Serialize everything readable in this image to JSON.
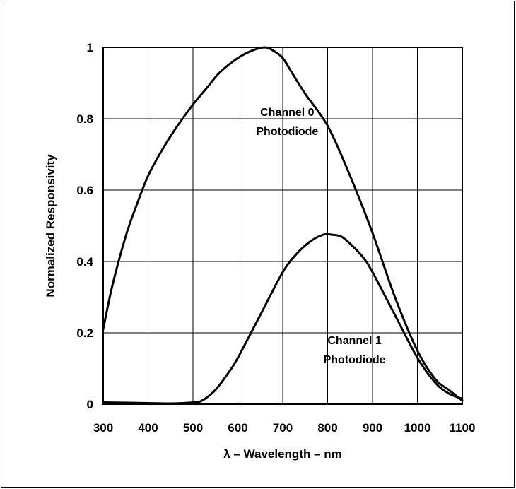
{
  "chart_data": {
    "type": "line",
    "title": "",
    "xlabel": "λ – Wavelength – nm",
    "ylabel": "Normalized Responsivity",
    "xlim": [
      300,
      1100
    ],
    "ylim": [
      0,
      1
    ],
    "x_ticks": [
      "300",
      "400",
      "500",
      "600",
      "700",
      "800",
      "900",
      "1000",
      "1100"
    ],
    "y_ticks": [
      "0",
      "0.2",
      "0.4",
      "0.6",
      "0.8",
      "1"
    ],
    "grid": true,
    "legend": "none",
    "series": [
      {
        "name": "Channel 0 Photodiode",
        "x": [
          300,
          320,
          350,
          375,
          400,
          430,
          460,
          500,
          530,
          560,
          600,
          630,
          660,
          680,
          700,
          720,
          750,
          800,
          850,
          900,
          950,
          1000,
          1040,
          1070,
          1100
        ],
        "y": [
          0.21,
          0.33,
          0.47,
          0.56,
          0.64,
          0.71,
          0.77,
          0.84,
          0.885,
          0.93,
          0.97,
          0.99,
          1.0,
          0.99,
          0.97,
          0.93,
          0.87,
          0.78,
          0.64,
          0.48,
          0.3,
          0.15,
          0.07,
          0.04,
          0.01
        ]
      },
      {
        "name": "Channel 1 Photodiode",
        "x": [
          300,
          400,
          450,
          500,
          520,
          550,
          580,
          600,
          650,
          700,
          730,
          760,
          790,
          810,
          830,
          850,
          880,
          900,
          950,
          1000,
          1040,
          1070,
          1100
        ],
        "y": [
          0.005,
          0.003,
          0.002,
          0.005,
          0.01,
          0.04,
          0.09,
          0.13,
          0.25,
          0.37,
          0.42,
          0.455,
          0.475,
          0.475,
          0.47,
          0.45,
          0.41,
          0.37,
          0.25,
          0.13,
          0.06,
          0.03,
          0.015
        ]
      }
    ],
    "annotations": [
      {
        "line1": "Channel 0",
        "line2": "Photodiode",
        "x": 710,
        "y": 0.8
      },
      {
        "line1": "Channel 1",
        "line2": "Photodiode",
        "x": 860,
        "y": 0.16
      }
    ]
  }
}
